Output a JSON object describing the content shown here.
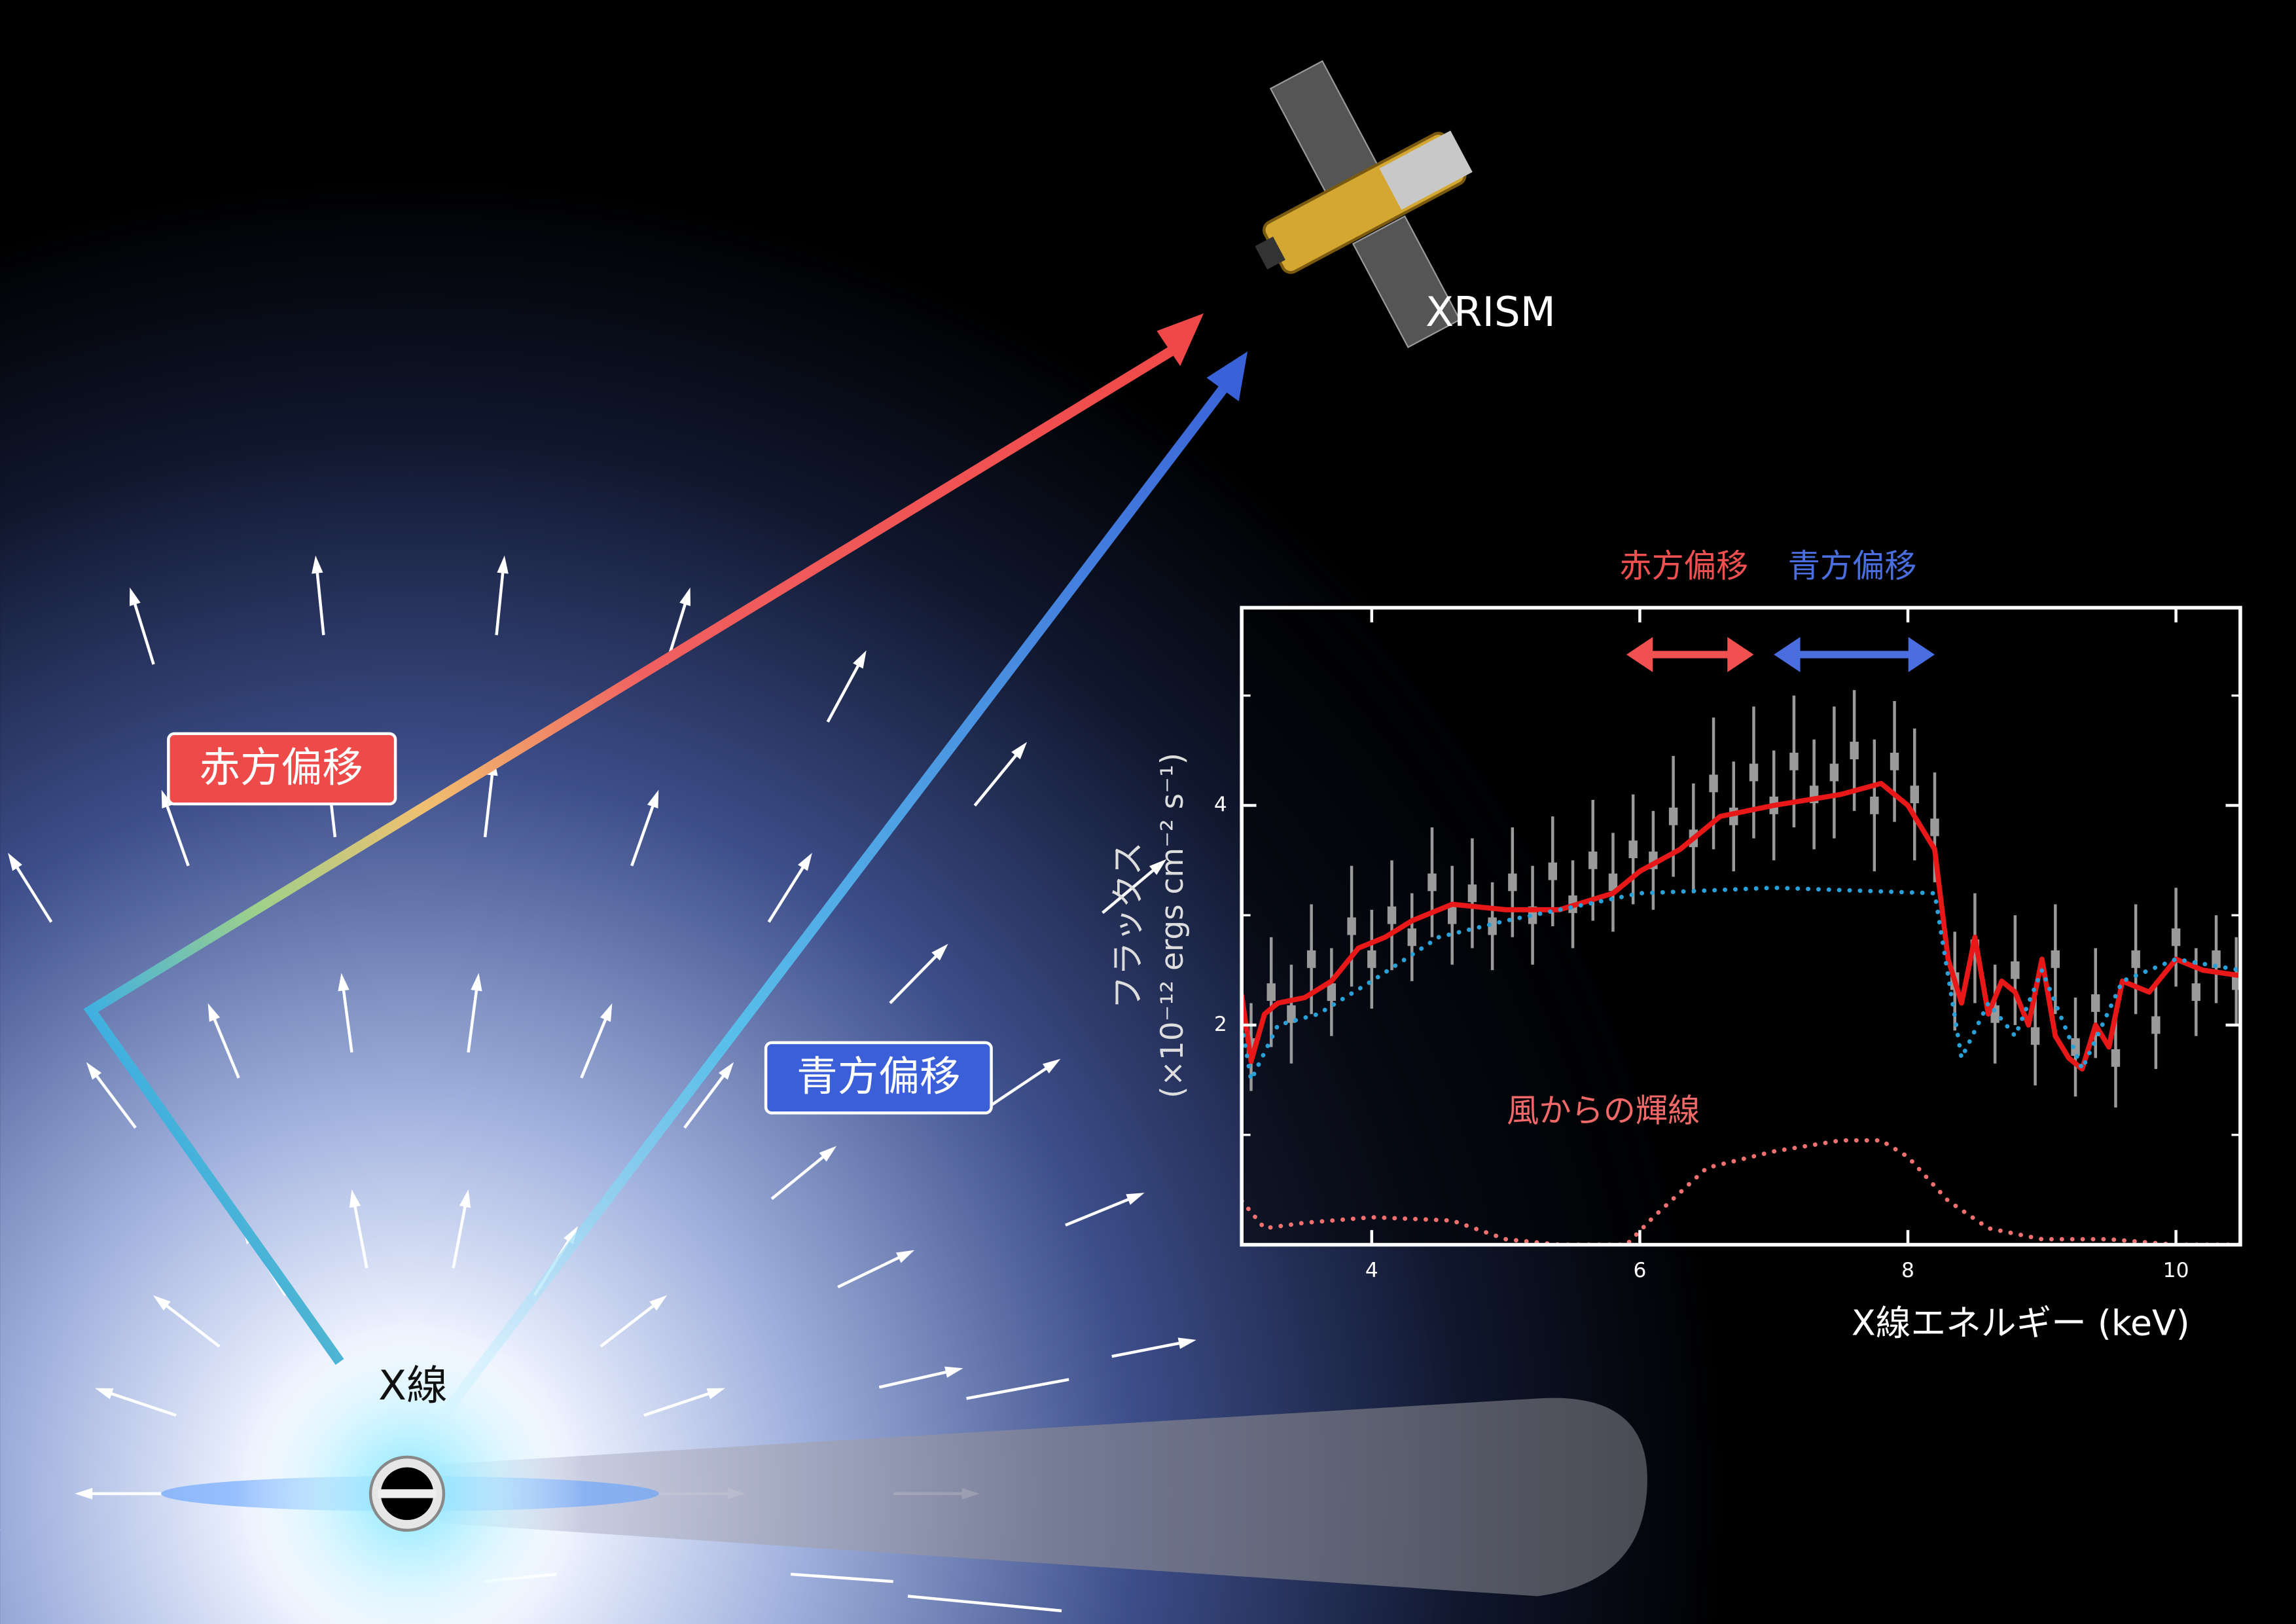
{
  "illustration": {
    "satellite": "XRISM",
    "source": "X線",
    "redshift_label": "赤方偏移",
    "blueshift_label": "青方偏移"
  },
  "chart_data": {
    "type": "line",
    "x_label": "X線エネルギー (keV)",
    "y_label": [
      "フラックス",
      "(×10⁻¹² ergs cm⁻² s⁻¹)"
    ],
    "xlim": [
      3.03,
      10.48
    ],
    "xticks": [
      4,
      6,
      8,
      10
    ],
    "ylim": [
      0,
      5.8
    ],
    "yticks": [
      2,
      4
    ],
    "yminorticks": [
      1,
      3,
      5
    ],
    "grid": false,
    "annotations": [
      {
        "text": "赤方偏移",
        "color": "#f05050",
        "x": [
          5.9,
          6.85
        ]
      },
      {
        "text": "青方偏移",
        "color": "#4a6ee0",
        "x": [
          7.0,
          8.2
        ]
      },
      {
        "text": "風からの輝線",
        "color": "#f06868"
      }
    ],
    "series": [
      {
        "color": "#9a9a9a",
        "style": "errorbar",
        "x": [
          3.1,
          3.25,
          3.4,
          3.55,
          3.7,
          3.85,
          4.0,
          4.15,
          4.3,
          4.45,
          4.6,
          4.75,
          4.9,
          5.05,
          5.2,
          5.35,
          5.5,
          5.65,
          5.8,
          5.95,
          6.1,
          6.25,
          6.4,
          6.55,
          6.7,
          6.85,
          7.0,
          7.15,
          7.3,
          7.45,
          7.6,
          7.75,
          7.9,
          8.05,
          8.2,
          8.35,
          8.5,
          8.65,
          8.8,
          8.95,
          9.1,
          9.25,
          9.4,
          9.55,
          9.7,
          9.85,
          10.0,
          10.15,
          10.3,
          10.45
        ],
        "values": [
          1.8,
          2.3,
          2.1,
          2.6,
          2.3,
          2.9,
          2.6,
          3.0,
          2.8,
          3.3,
          3.0,
          3.2,
          2.9,
          3.3,
          3.0,
          3.4,
          3.1,
          3.5,
          3.3,
          3.6,
          3.5,
          3.9,
          3.7,
          4.2,
          3.9,
          4.3,
          4.0,
          4.4,
          4.1,
          4.3,
          4.5,
          4.0,
          4.4,
          4.1,
          3.8,
          2.4,
          2.7,
          2.1,
          2.5,
          1.9,
          2.6,
          1.8,
          2.2,
          1.7,
          2.6,
          2.0,
          2.8,
          2.3,
          2.6,
          2.4
        ],
        "errors": [
          0.4,
          0.5,
          0.45,
          0.5,
          0.4,
          0.55,
          0.45,
          0.5,
          0.4,
          0.5,
          0.45,
          0.5,
          0.4,
          0.5,
          0.45,
          0.5,
          0.4,
          0.55,
          0.45,
          0.5,
          0.45,
          0.55,
          0.5,
          0.6,
          0.5,
          0.6,
          0.5,
          0.6,
          0.5,
          0.6,
          0.55,
          0.6,
          0.55,
          0.6,
          0.5,
          0.45,
          0.5,
          0.45,
          0.5,
          0.45,
          0.5,
          0.45,
          0.5,
          0.45,
          0.5,
          0.4,
          0.45,
          0.4,
          0.4,
          0.4
        ]
      },
      {
        "color": "#e81818",
        "style": "solid",
        "x": [
          3.03,
          3.1,
          3.2,
          3.3,
          3.5,
          3.7,
          3.9,
          4.1,
          4.3,
          4.6,
          5.0,
          5.4,
          5.8,
          6.0,
          6.3,
          6.6,
          7.0,
          7.5,
          7.8,
          8.0,
          8.2,
          8.3,
          8.4,
          8.5,
          8.6,
          8.7,
          8.8,
          8.9,
          9.0,
          9.1,
          9.2,
          9.3,
          9.4,
          9.5,
          9.6,
          9.8,
          10.0,
          10.2,
          10.48
        ],
        "values": [
          2.27,
          1.67,
          2.1,
          2.2,
          2.25,
          2.4,
          2.7,
          2.8,
          2.95,
          3.1,
          3.05,
          3.05,
          3.2,
          3.4,
          3.6,
          3.9,
          4.0,
          4.1,
          4.2,
          4.0,
          3.6,
          2.6,
          2.2,
          2.8,
          2.1,
          2.4,
          2.3,
          2.0,
          2.6,
          1.9,
          1.7,
          1.6,
          2.0,
          1.8,
          2.4,
          2.3,
          2.6,
          2.5,
          2.45
        ]
      },
      {
        "color": "#2aa0d8",
        "style": "dotted",
        "x": [
          3.03,
          3.1,
          3.3,
          3.6,
          4.0,
          4.5,
          5.0,
          6.0,
          7.0,
          8.2,
          8.4,
          8.6,
          8.8,
          9.0,
          9.3,
          9.6,
          10.0,
          10.48
        ],
        "values": [
          2.0,
          1.5,
          2.0,
          2.1,
          2.4,
          2.8,
          2.95,
          3.2,
          3.25,
          3.2,
          1.7,
          2.2,
          1.9,
          2.5,
          1.6,
          2.4,
          2.6,
          2.5
        ]
      },
      {
        "color": "#f07070",
        "style": "dotted",
        "x": [
          3.03,
          3.2,
          3.5,
          4.0,
          4.6,
          5.0,
          5.4,
          5.9,
          6.1,
          6.5,
          7.0,
          7.5,
          7.8,
          8.0,
          8.3,
          8.6,
          9.0,
          9.5,
          10.0,
          10.48
        ],
        "values": [
          0.4,
          0.15,
          0.2,
          0.25,
          0.22,
          0.05,
          0,
          0,
          0.25,
          0.7,
          0.85,
          0.95,
          0.95,
          0.8,
          0.4,
          0.15,
          0.05,
          0.05,
          0,
          0
        ]
      }
    ]
  }
}
